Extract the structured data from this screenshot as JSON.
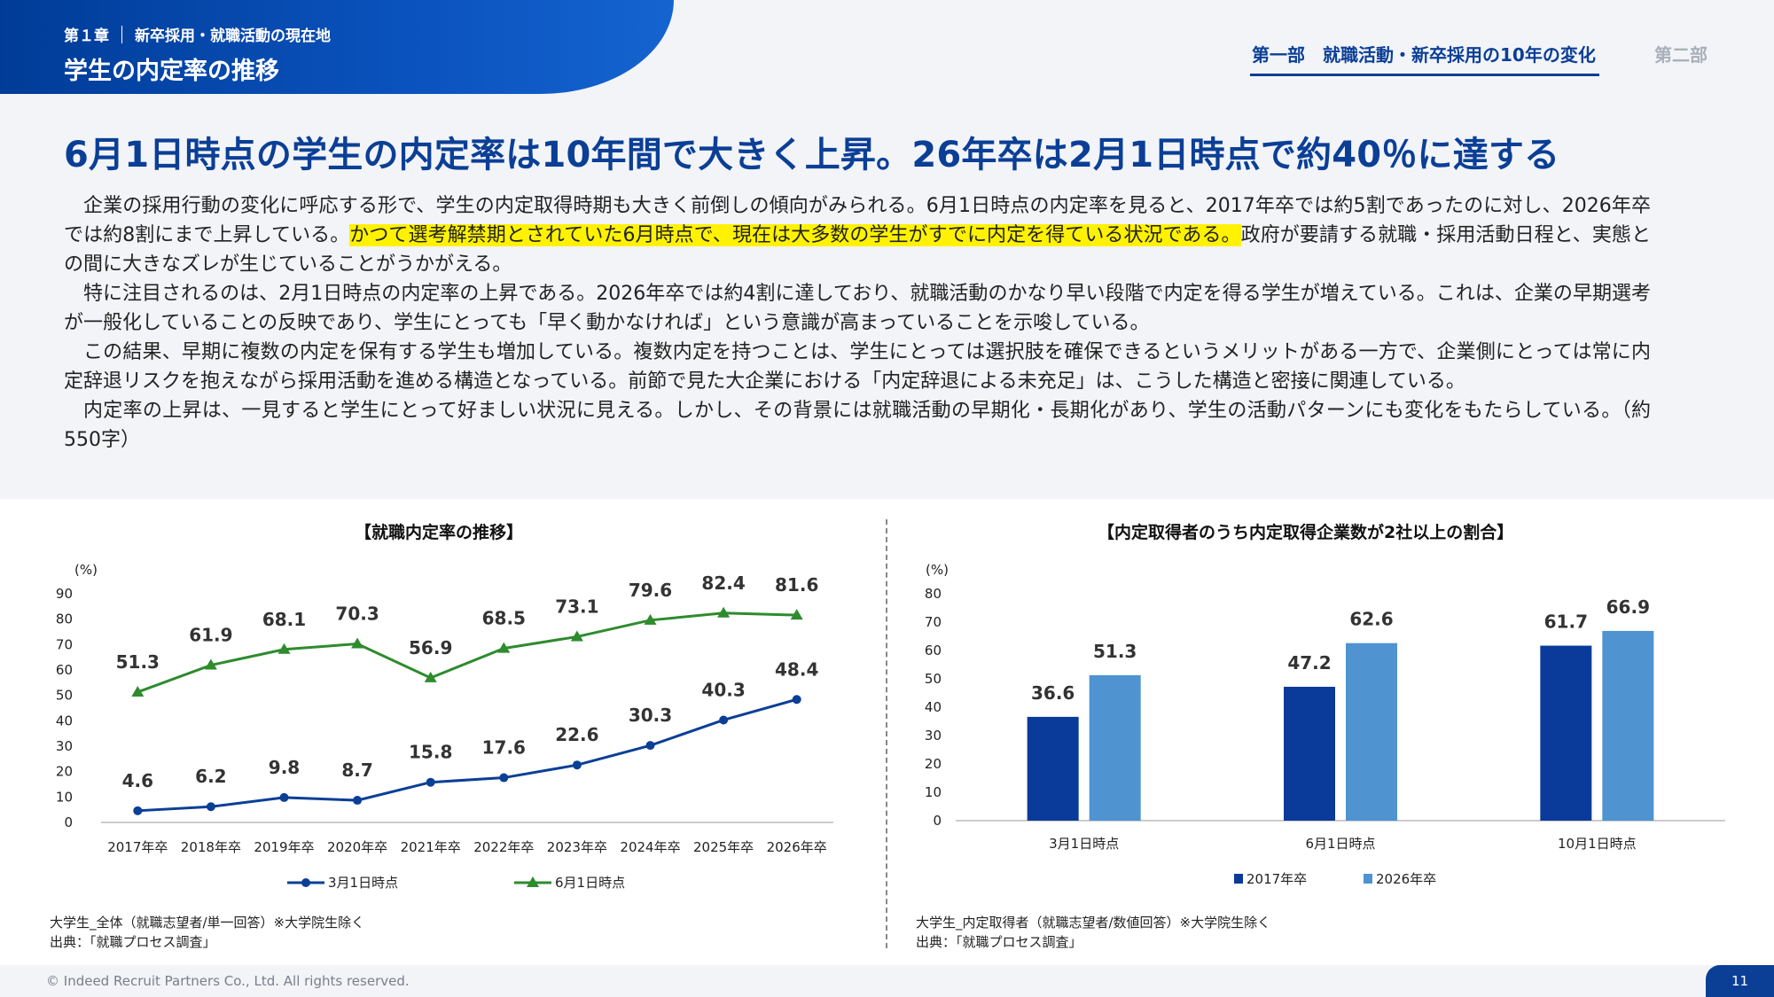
{
  "header": {
    "chapter": "第１章",
    "chapter_topic": "新卒採用・就職活動の現在地",
    "section_title": "学生の内定率の推移",
    "part_active": "第一部　就職活動・新卒採用の10年の変化",
    "part_inactive": "第二部"
  },
  "main_heading": "6月1日時点の学生の内定率は10年間で大きく上昇。26年卒は2月1日時点で約40％に達する",
  "body": {
    "p1_a": "企業の採用行動の変化に呼応する形で、学生の内定取得時期も大きく前倒しの傾向がみられる。6月1日時点の内定率を見ると、2017年卒では約5割であったのに対し、2026年卒では約8割にまで上昇している。",
    "p1_highlight": "かつて選考解禁期とされていた6月時点で、現在は大多数の学生がすでに内定を得ている状況である。",
    "p1_b": "政府が要請する就職・採用活動日程と、実態との間に大きなズレが生じていることがうかがえる。",
    "p2": "特に注目されるのは、2月1日時点の内定率の上昇である。2026年卒では約4割に達しており、就職活動のかなり早い段階で内定を得る学生が増えている。これは、企業の早期選考が一般化していることの反映であり、学生にとっても「早く動かなければ」という意識が高まっていることを示唆している。",
    "p3": "この結果、早期に複数の内定を保有する学生も増加している。複数内定を持つことは、学生にとっては選択肢を確保できるというメリットがある一方で、企業側にとっては常に内定辞退リスクを抱えながら採用活動を進める構造となっている。前節で見た大企業における「内定辞退による未充足」は、こうした構造と密接に関連している。",
    "p4": "内定率の上昇は、一見すると学生にとって好ましい状況に見える。しかし、その背景には就職活動の早期化・長期化があり、学生の活動パターンにも変化をもたらしている。（約550字）"
  },
  "chart_left_note": {
    "line1": "大学生_全体（就職志望者/単一回答）※大学院生除く",
    "line2": "出典：「就職プロセス調査」"
  },
  "chart_right_note": {
    "line1": "大学生_内定取得者（就職志望者/数値回答）※大学院生除く",
    "line2": "出典：「就職プロセス調査」"
  },
  "chart_data": [
    {
      "type": "line",
      "title": "【就職内定率の推移】",
      "ylabel": "(%)",
      "ylim": [
        0,
        90
      ],
      "yticks": [
        0,
        10,
        20,
        30,
        40,
        50,
        60,
        70,
        80,
        90
      ],
      "categories": [
        "2017年卒",
        "2018年卒",
        "2019年卒",
        "2020年卒",
        "2021年卒",
        "2022年卒",
        "2023年卒",
        "2024年卒",
        "2025年卒",
        "2026年卒"
      ],
      "series": [
        {
          "name": "3月1日時点",
          "color": "#0b3f96",
          "marker": "circle",
          "values": [
            4.6,
            6.2,
            9.8,
            8.7,
            15.8,
            17.6,
            22.6,
            30.3,
            40.3,
            48.4
          ]
        },
        {
          "name": "6月1日時点",
          "color": "#2e8b2e",
          "marker": "triangle",
          "values": [
            51.3,
            61.9,
            68.1,
            70.3,
            56.9,
            68.5,
            73.1,
            79.6,
            82.4,
            81.6
          ]
        }
      ],
      "legend": "bottom"
    },
    {
      "type": "bar",
      "title": "【内定取得者のうち内定取得企業数が2社以上の割合】",
      "ylabel": "(%)",
      "ylim": [
        0,
        80
      ],
      "yticks": [
        0,
        10,
        20,
        30,
        40,
        50,
        60,
        70,
        80
      ],
      "categories": [
        "3月1日時点",
        "6月1日時点",
        "10月1日時点"
      ],
      "series": [
        {
          "name": "2017年卒",
          "color": "#0a3a9a",
          "values": [
            36.6,
            47.2,
            61.7
          ]
        },
        {
          "name": "2026年卒",
          "color": "#4f93d1",
          "values": [
            51.3,
            62.6,
            66.9
          ]
        }
      ],
      "legend": "bottom"
    }
  ],
  "footer": {
    "copyright": "© Indeed Recruit Partners Co., Ltd. All rights reserved.",
    "page_number": "11"
  }
}
